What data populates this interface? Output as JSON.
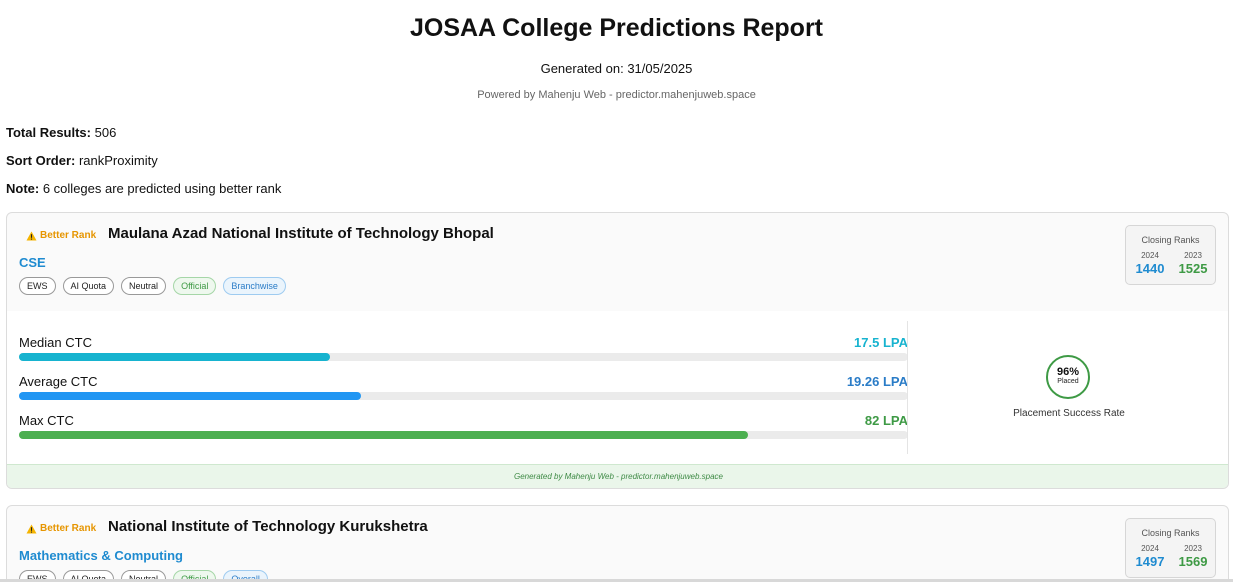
{
  "header": {
    "title": "JOSAA College Predictions Report",
    "generated_on": "Generated on: 31/05/2025",
    "powered_by": "Powered by Mahenju Web - predictor.mahenjuweb.space"
  },
  "summary": {
    "total_label": "Total Results:",
    "total_value": "506",
    "sort_label": "Sort Order:",
    "sort_value": "rankProximity",
    "note_label": "Note:",
    "note_value": "6 colleges are predicted using better rank"
  },
  "colors": {
    "warning": "#e69500",
    "branch_blue": "#1f8bd0",
    "median_bar": "#17b3cf",
    "average_bar": "#2196f3",
    "max_bar": "#4caf50",
    "placement_green": "#3e9a45"
  },
  "colleges": [
    {
      "badge": "Better Rank",
      "badge_icon": "warning-triangle-icon",
      "name": "Maulana Azad National Institute of Technology Bhopal",
      "branch": "CSE",
      "tags": [
        "EWS",
        "AI Quota",
        "Neutral",
        "Official",
        "Branchwise"
      ],
      "ranks": {
        "title": "Closing Ranks",
        "year1": "2024",
        "rank1": "1440",
        "year2": "2023",
        "rank2": "1525"
      },
      "ctc": {
        "median_label": "Median CTC",
        "median_value": "17.5 LPA",
        "median_fraction": 0.35,
        "average_label": "Average CTC",
        "average_value": "19.26 LPA",
        "average_fraction": 0.385,
        "max_label": "Max CTC",
        "max_value": "82 LPA",
        "max_fraction": 0.82
      },
      "placement": {
        "percent": "96%",
        "percent_sub": "Placed",
        "label": "Placement Success Rate"
      },
      "footer": "Generated by Mahenju Web - predictor.mahenjuweb.space"
    },
    {
      "badge": "Better Rank",
      "badge_icon": "warning-triangle-icon",
      "name": "National Institute of Technology Kurukshetra",
      "branch": "Mathematics & Computing",
      "tags": [
        "EWS",
        "AI Quota",
        "Neutral",
        "Official",
        "Overall"
      ],
      "ranks": {
        "title": "Closing Ranks",
        "year1": "2024",
        "rank1": "1497",
        "year2": "2023",
        "rank2": "1569"
      }
    }
  ]
}
